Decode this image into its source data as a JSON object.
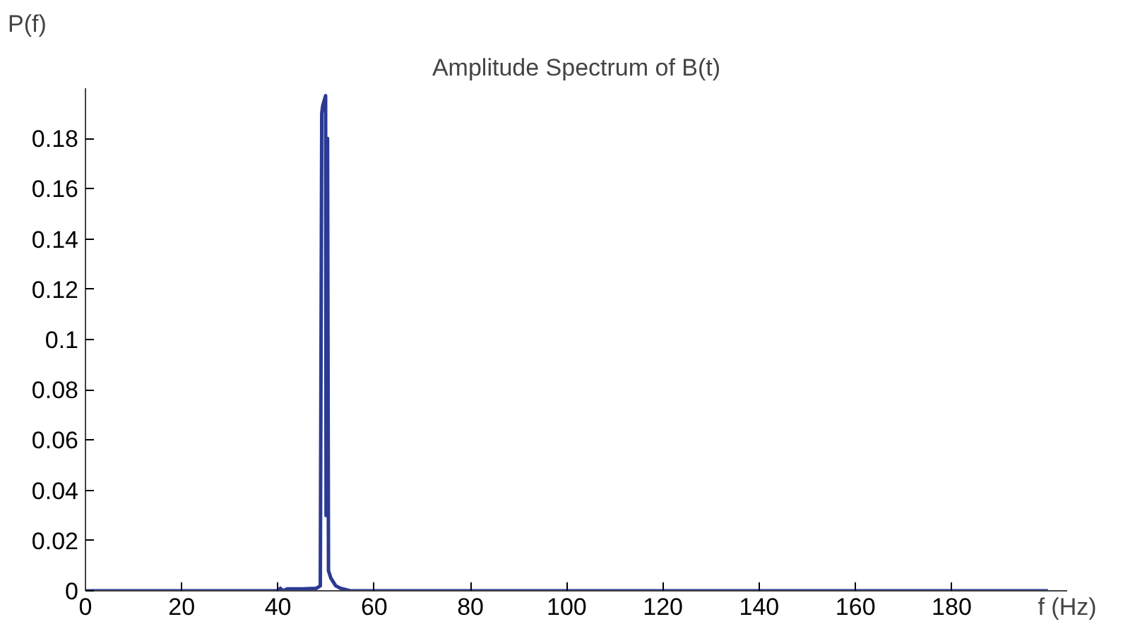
{
  "chart_data": {
    "type": "line",
    "title": "Amplitude Spectrum of B(t)",
    "xlabel": "f (Hz)",
    "ylabel": "P(f)",
    "x": [
      0,
      40,
      40.5,
      41,
      42,
      45,
      48,
      48.8,
      49.1,
      49.3,
      49.6,
      49.9,
      50.0,
      50.1,
      50.2,
      50.3,
      50.5,
      51,
      52,
      53,
      55,
      100,
      150,
      200
    ],
    "series": [
      {
        "color": "#2b3a92",
        "values": [
          0,
          0,
          0.001,
          0,
          0.0008,
          0.0008,
          0.001,
          0.002,
          0.19,
          0.193,
          0.195,
          0.197,
          0.03,
          0.03,
          0.18,
          0.18,
          0.008,
          0.005,
          0.002,
          0.001,
          0,
          0,
          0,
          0
        ]
      }
    ],
    "xlim": [
      0,
      204
    ],
    "ylim": [
      0,
      0.2
    ],
    "xticks": [
      0,
      20,
      40,
      60,
      80,
      100,
      120,
      140,
      160,
      180
    ],
    "yticks": [
      0,
      0.02,
      0.04,
      0.06,
      0.08,
      {
        "value": 0.1,
        "label": "0.1"
      },
      0.12,
      0.14,
      0.16,
      0.18
    ],
    "grid": false,
    "marker": "none",
    "line_style": "solid"
  }
}
